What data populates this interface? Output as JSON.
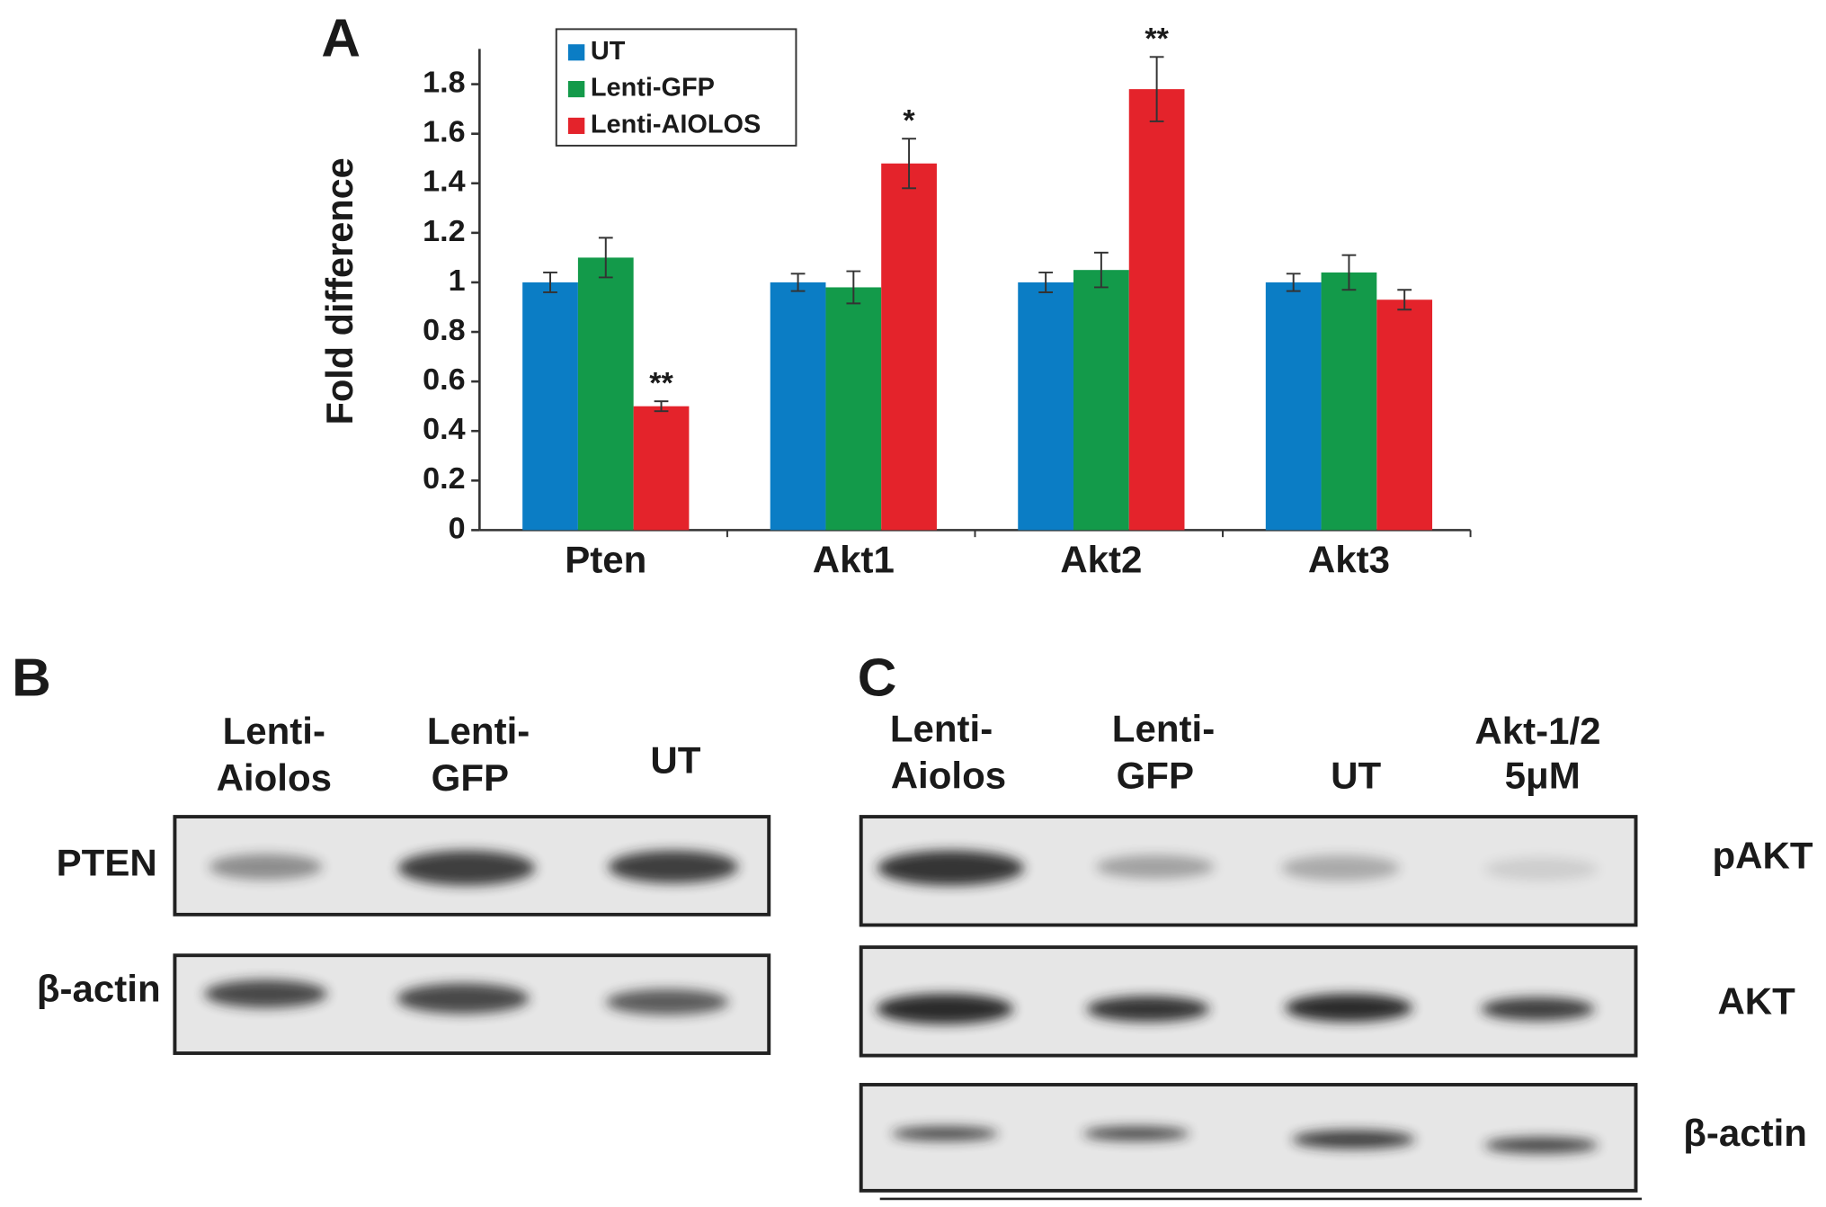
{
  "chart_data": {
    "type": "bar",
    "panel_label": "A",
    "ylabel": "Fold difference",
    "categories": [
      "Pten",
      "Akt1",
      "Akt2",
      "Akt3"
    ],
    "series": [
      {
        "name": "UT",
        "color": "#0b7dc5",
        "values": [
          1,
          1,
          1,
          1
        ],
        "errors": [
          0.04,
          0.035,
          0.04,
          0.035
        ],
        "significance": [
          null,
          null,
          null,
          null
        ]
      },
      {
        "name": "Lenti-GFP",
        "color": "#139a4a",
        "values": [
          1.1,
          0.98,
          1.05,
          1.04
        ],
        "errors": [
          0.08,
          0.065,
          0.07,
          0.07
        ],
        "significance": [
          null,
          null,
          null,
          null
        ]
      },
      {
        "name": "Lenti-AIOLOS",
        "color": "#e4232b",
        "values": [
          0.5,
          1.48,
          1.78,
          0.93
        ],
        "errors": [
          0.02,
          0.1,
          0.13,
          0.04
        ],
        "significance": [
          "**",
          "*",
          "**",
          null
        ]
      }
    ],
    "ylim": [
      0,
      1.9
    ],
    "yticks": [
      0,
      0.2,
      0.4,
      0.6,
      0.8,
      1,
      1.2,
      1.4,
      1.6,
      1.8
    ],
    "legend": "upper-left",
    "grid": false
  },
  "panels": {
    "B": {
      "label": "B",
      "lanes": [
        [
          "Lenti-",
          "Aiolos"
        ],
        [
          "Lenti-",
          "GFP"
        ],
        [
          "UT"
        ]
      ],
      "rows": [
        "PTEN",
        "β-actin"
      ]
    },
    "C": {
      "label": "C",
      "lanes": [
        [
          "Lenti-",
          "Aiolos"
        ],
        [
          "Lenti-",
          "GFP"
        ],
        [
          "UT"
        ],
        [
          "Akt-1/2",
          "5μM"
        ]
      ],
      "rows": [
        "pAKT",
        "AKT",
        "β-actin"
      ]
    }
  }
}
